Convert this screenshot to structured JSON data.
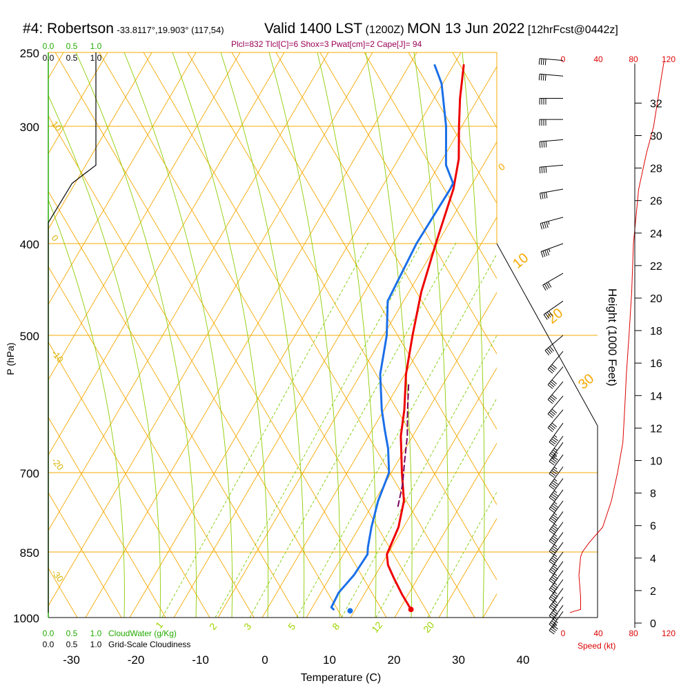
{
  "header": {
    "station": "#4: Robertson",
    "coords": "-33.8117°,19.903° (117,54)",
    "valid": "Valid 1400 LST",
    "utc": "(1200Z)",
    "date": "MON 13 Jun 2022",
    "forecast": "[12hrFcst@0442z]"
  },
  "stats_line": "Plcl=832 Tlcl[C]=6 Shox=3 Pwat[cm]=2 Cape[J]= 94",
  "colors": {
    "isobar": "#f5a800",
    "dry_adiabat": "#f5a800",
    "moist_adiabat": "#8ccc00",
    "mixing_ratio": "#7dcc00",
    "temperature": "#ee0000",
    "dewpoint": "#1a6fe8",
    "parcel": "#7a0060",
    "cloud_water": "#22aa00",
    "speed": "#dd0000",
    "stats": "#990055"
  },
  "chart_data": {
    "type": "line",
    "title": "#4: Robertson",
    "xlabel": "Temperature (C)",
    "ylabel": "P (hPa)",
    "right_ylabel": "Height (1000 Feet)",
    "x_ticks": [
      "-30",
      "-20",
      "-10",
      "0",
      "10",
      "20",
      "30",
      "40"
    ],
    "pressure_labels": [
      "250",
      "300",
      "400",
      "500",
      "700",
      "850",
      "1000"
    ],
    "height_ticks": [
      "0",
      "2",
      "4",
      "6",
      "8",
      "10",
      "12",
      "14",
      "16",
      "18",
      "20",
      "22",
      "24",
      "26",
      "28",
      "30",
      "32"
    ],
    "cloud_scale": {
      "ticks": [
        "0.0",
        "0.5",
        "1.0"
      ],
      "label": "CloudWater (g/Kg)"
    },
    "cloudiness_scale": {
      "ticks": [
        "0.0",
        "0.5",
        "1.0"
      ],
      "label": "Grid-Scale Cloudiness"
    },
    "speed_scale": {
      "ticks": [
        "0",
        "40",
        "80",
        "120"
      ],
      "label": "Speed (kt)"
    },
    "dry_adiabat_labels": [
      "10",
      "0",
      "-10",
      "-20",
      "-30"
    ],
    "moist_adiabat_labels": [
      "0",
      "10",
      "20",
      "30"
    ],
    "mixing_ratio_labels": [
      "1",
      "2",
      "3",
      "5",
      "8",
      "12",
      "20"
    ],
    "series": [
      {
        "name": "Temperature",
        "points": [
          [
            22,
            980
          ],
          [
            19.5,
            945
          ],
          [
            17,
            908
          ],
          [
            15,
            878
          ],
          [
            14,
            855
          ],
          [
            13.7,
            800
          ],
          [
            12.5,
            750
          ],
          [
            10,
            700
          ],
          [
            7,
            640
          ],
          [
            5.5,
            600
          ],
          [
            3,
            550
          ],
          [
            1,
            500
          ],
          [
            -1,
            450
          ],
          [
            -2.5,
            400
          ],
          [
            -4,
            350
          ],
          [
            -5.5,
            325
          ],
          [
            -8,
            300
          ],
          [
            -10,
            280
          ],
          [
            -12,
            258
          ]
        ]
      },
      {
        "name": "Dewpoint",
        "points": [
          [
            10,
            980
          ],
          [
            9.5,
            975
          ],
          [
            9.5,
            940
          ],
          [
            10.5,
            900
          ],
          [
            11,
            855
          ],
          [
            10.5,
            840
          ],
          [
            9.5,
            800
          ],
          [
            8.5,
            750
          ],
          [
            8,
            700
          ],
          [
            6,
            660
          ],
          [
            4,
            630
          ],
          [
            2,
            600
          ],
          [
            -1,
            550
          ],
          [
            -3,
            500
          ],
          [
            -5.5,
            460
          ],
          [
            -5.5,
            400
          ],
          [
            -4.5,
            350
          ],
          [
            -4.5,
            345
          ],
          [
            -7,
            330
          ],
          [
            -10,
            300
          ],
          [
            -14,
            270
          ],
          [
            -16.5,
            258
          ]
        ]
      },
      {
        "name": "Parcel",
        "points": [
          [
            12,
            760
          ],
          [
            11,
            720
          ],
          [
            9.5,
            680
          ],
          [
            8,
            640
          ],
          [
            6,
            600
          ],
          [
            4,
            560
          ]
        ]
      }
    ],
    "winds": [
      [
        985,
        6,
        45
      ],
      [
        970,
        6,
        45
      ],
      [
        950,
        6,
        45
      ],
      [
        930,
        6,
        45
      ],
      [
        910,
        6,
        45
      ],
      [
        890,
        6,
        45
      ],
      [
        870,
        6,
        45
      ],
      [
        850,
        6,
        45
      ],
      [
        830,
        6,
        45
      ],
      [
        810,
        6,
        45
      ],
      [
        790,
        6,
        45
      ],
      [
        770,
        6,
        45
      ],
      [
        750,
        6,
        45
      ],
      [
        730,
        6,
        45
      ],
      [
        710,
        6,
        45
      ],
      [
        690,
        6,
        45
      ],
      [
        670,
        6,
        45
      ],
      [
        650,
        6,
        45
      ],
      [
        640,
        6,
        45
      ],
      [
        620,
        6,
        45
      ],
      [
        600,
        10,
        40
      ],
      [
        580,
        10,
        40
      ],
      [
        560,
        10,
        40
      ],
      [
        540,
        10,
        40
      ],
      [
        520,
        10,
        40
      ],
      [
        500,
        20,
        40
      ],
      [
        460,
        25,
        40
      ],
      [
        430,
        30,
        40
      ],
      [
        400,
        40,
        45
      ],
      [
        375,
        45,
        45
      ],
      [
        350,
        50,
        40
      ],
      [
        330,
        55,
        40
      ],
      [
        310,
        55,
        40
      ],
      [
        295,
        60,
        40
      ],
      [
        280,
        60,
        40
      ],
      [
        265,
        65,
        40
      ],
      [
        255,
        65,
        40
      ]
    ],
    "speed_profile": [
      [
        988,
        8
      ],
      [
        985,
        12
      ],
      [
        980,
        20
      ],
      [
        950,
        20
      ],
      [
        900,
        18
      ],
      [
        860,
        20
      ],
      [
        850,
        22
      ],
      [
        830,
        30
      ],
      [
        800,
        45
      ],
      [
        750,
        55
      ],
      [
        700,
        62
      ],
      [
        650,
        68
      ],
      [
        600,
        70
      ],
      [
        550,
        72
      ],
      [
        500,
        75
      ],
      [
        450,
        78
      ],
      [
        400,
        80
      ],
      [
        350,
        86
      ],
      [
        320,
        95
      ],
      [
        300,
        103
      ],
      [
        280,
        108
      ],
      [
        265,
        112
      ],
      [
        255,
        115
      ]
    ],
    "cloud_water_g_kg": 0,
    "cloudiness_profile": [
      [
        988,
        0
      ],
      [
        880,
        0
      ],
      [
        400,
        0
      ],
      [
        380,
        0
      ],
      [
        345,
        0.5
      ],
      [
        330,
        1.0
      ],
      [
        250,
        1.0
      ]
    ]
  }
}
